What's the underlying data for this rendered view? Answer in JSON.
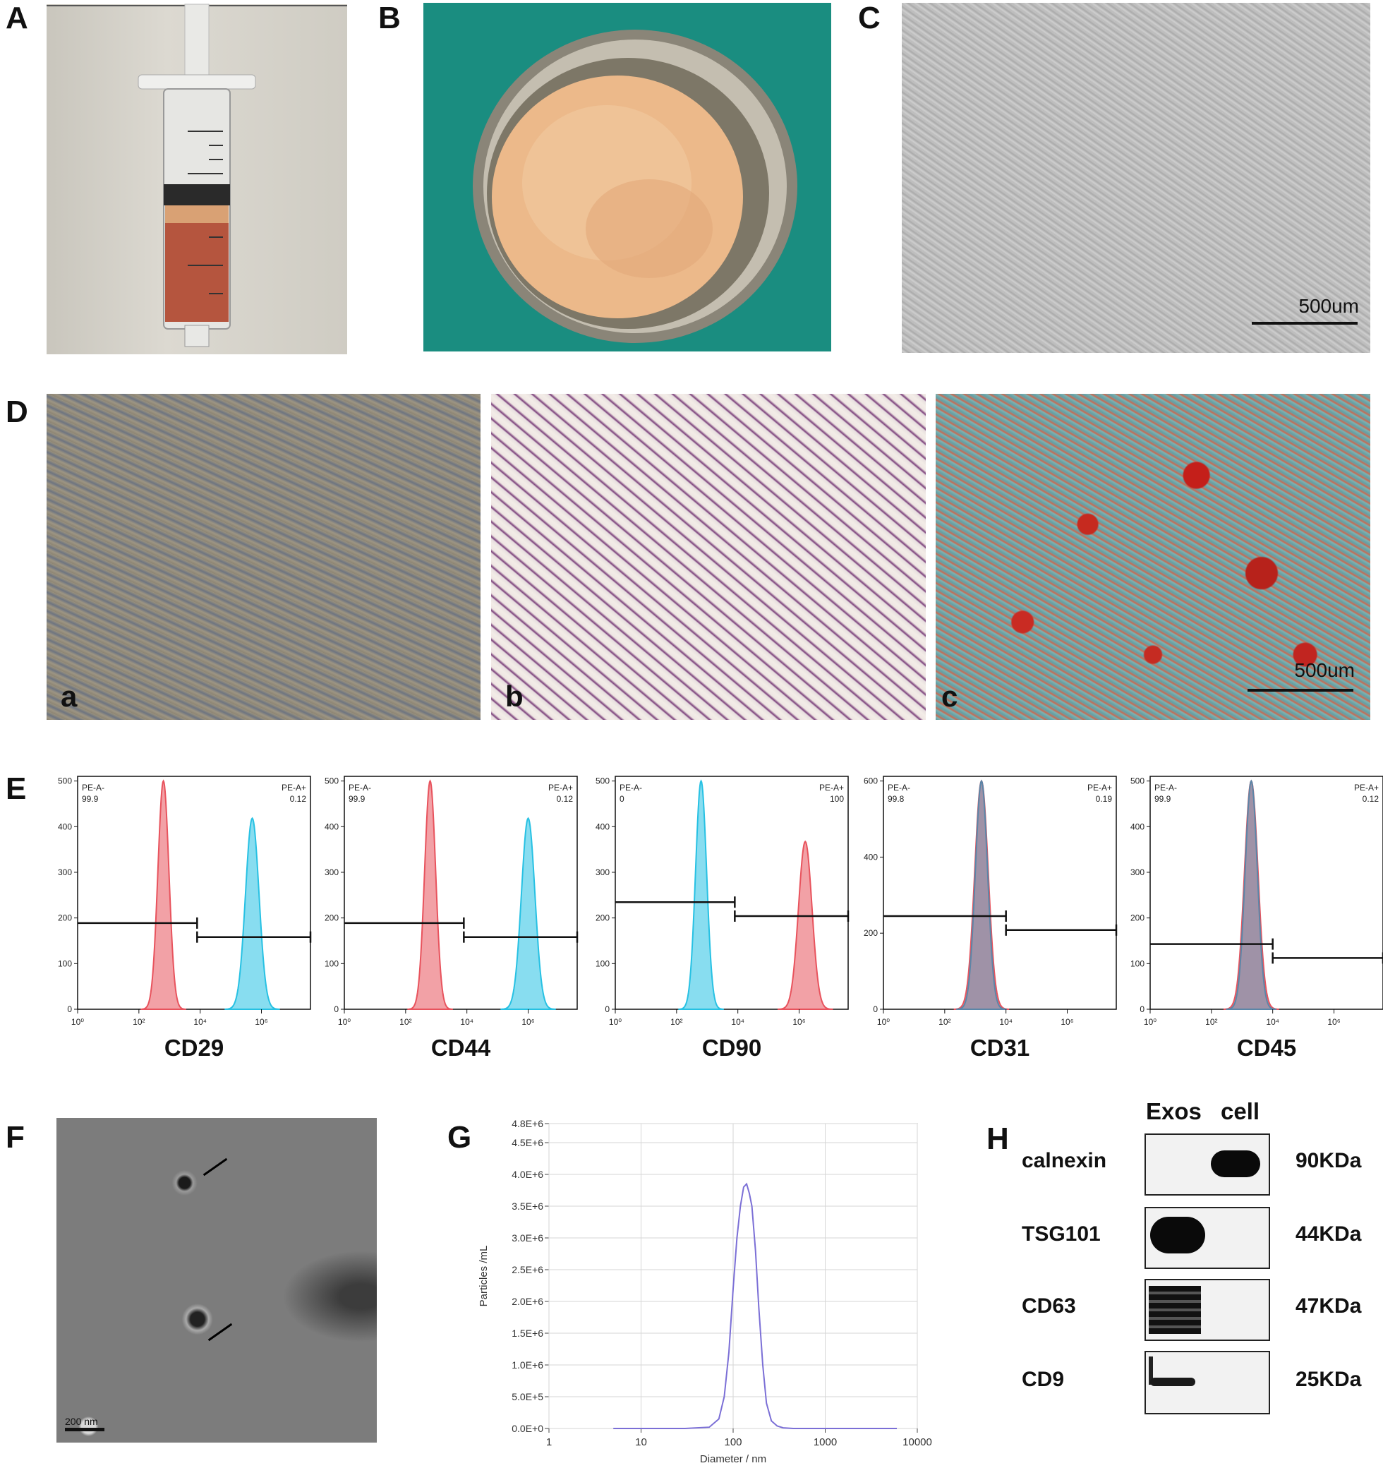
{
  "panels": {
    "A": "A",
    "B": "B",
    "C": "C",
    "D": "D",
    "E": "E",
    "F": "F",
    "G": "G",
    "H": "H"
  },
  "panelC": {
    "scale": "500um"
  },
  "panelD": {
    "sub": [
      "a",
      "b",
      "c"
    ],
    "scale": "500um"
  },
  "panelE": {
    "histograms": [
      {
        "marker": "CD29",
        "neg_label": "PE-A-",
        "neg_value": "99.9",
        "pos_label": "PE-A+",
        "pos_value": "0.12",
        "ymax": 500,
        "yticks": [
          "0",
          "100",
          "200",
          "300",
          "400",
          "500"
        ]
      },
      {
        "marker": "CD44",
        "neg_label": "PE-A-",
        "neg_value": "99.9",
        "pos_label": "PE-A+",
        "pos_value": "0.12",
        "ymax": 500,
        "yticks": [
          "0",
          "100",
          "200",
          "300",
          "400",
          "500"
        ]
      },
      {
        "marker": "CD90",
        "neg_label": "PE-A-",
        "neg_value": "0",
        "pos_label": "PE-A+",
        "pos_value": "100",
        "ymax": 500,
        "yticks": [
          "0",
          "100",
          "200",
          "300",
          "400",
          "500"
        ]
      },
      {
        "marker": "CD31",
        "neg_label": "PE-A-",
        "neg_value": "99.8",
        "pos_label": "PE-A+",
        "pos_value": "0.19",
        "ymax": 600,
        "yticks": [
          "0",
          "200",
          "400",
          "600"
        ]
      },
      {
        "marker": "CD45",
        "neg_label": "PE-A-",
        "neg_value": "99.9",
        "pos_label": "PE-A+",
        "pos_value": "0.12",
        "ymax": 500,
        "yticks": [
          "0",
          "100",
          "200",
          "300",
          "400",
          "500"
        ]
      }
    ],
    "xticks": [
      "10⁰",
      "10²",
      "10⁴",
      "10⁶"
    ]
  },
  "panelF": {
    "scale": "200 nm"
  },
  "chart_data": {
    "type": "line",
    "xlabel": "Diameter / nm",
    "ylabel": "Particles /mL",
    "xscale": "log",
    "xlim": [
      1,
      10000
    ],
    "xticks": [
      "1",
      "10",
      "100",
      "1000",
      "10000"
    ],
    "ylim": [
      0,
      4800000
    ],
    "yticks": [
      "0.0E+0",
      "5.0E+5",
      "1.0E+6",
      "1.5E+6",
      "2.0E+6",
      "2.5E+6",
      "3.0E+6",
      "3.5E+6",
      "4.0E+6",
      "4.5E+6",
      "4.8E+6"
    ],
    "grid": true,
    "series": [
      {
        "color": "#7b6fd6",
        "x": [
          5,
          30,
          55,
          70,
          80,
          90,
          100,
          110,
          120,
          130,
          140,
          150,
          160,
          175,
          190,
          210,
          230,
          260,
          300,
          350,
          450,
          1000,
          6000
        ],
        "y": [
          0,
          0,
          20000,
          150000,
          500000,
          1200000,
          2200000,
          3000000,
          3500000,
          3800000,
          3850000,
          3700000,
          3500000,
          2800000,
          1900000,
          1000000,
          400000,
          120000,
          40000,
          10000,
          0,
          0,
          0
        ]
      }
    ]
  },
  "panelH": {
    "columns": [
      "Exos",
      "cell"
    ],
    "rows": [
      {
        "protein": "calnexin",
        "kda": "90KDa"
      },
      {
        "protein": "TSG101",
        "kda": "44KDa"
      },
      {
        "protein": "CD63",
        "kda": "47KDa"
      },
      {
        "protein": "CD9",
        "kda": "25KDa"
      }
    ]
  },
  "colors": {
    "neg": "#e8535d",
    "pos": "#27c1e3",
    "overlay": "#5b86a8",
    "nta": "#7b6fd6"
  }
}
